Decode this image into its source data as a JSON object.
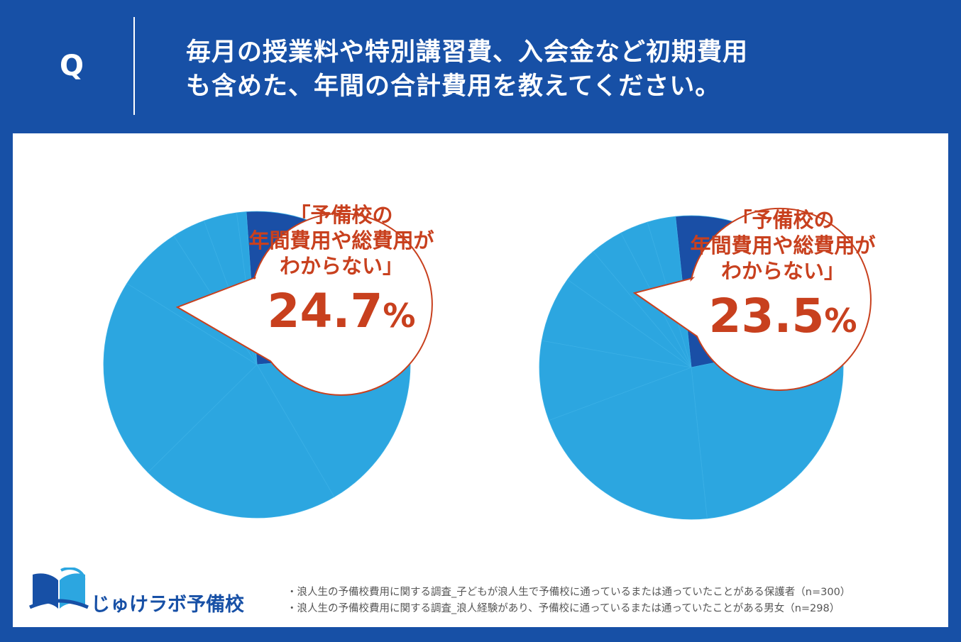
{
  "header": {
    "q_mark": "Q",
    "question_line1": "毎月の授業料や特別講習費、入会金など初期費用",
    "question_line2": "も含めた、年間の合計費用を教えてください。"
  },
  "chart_data": [
    {
      "type": "pie",
      "slices": [
        {
          "value": 24.7,
          "color": "#1a4fa6"
        },
        {
          "value": 18.0,
          "color": "#2ca6e0"
        },
        {
          "value": 21.0,
          "color": "#2ca6e0"
        },
        {
          "value": 21.3,
          "color": "#2ca6e0"
        },
        {
          "value": 7.0,
          "color": "#2ca6e0"
        },
        {
          "value": 3.5,
          "color": "#2ca6e0"
        },
        {
          "value": 3.5,
          "color": "#2ca6e0"
        },
        {
          "value": 1.0,
          "color": "#2ca6e0"
        }
      ],
      "highlight": {
        "label_line1": "「予備校の",
        "label_line2": "年間費用や総費用が",
        "label_line3": "わからない」",
        "value_int": "24.",
        "value_dec": "7",
        "value_unit": "%"
      }
    },
    {
      "type": "pie",
      "slices": [
        {
          "value": 23.5,
          "color": "#1a4fa6"
        },
        {
          "value": 26.5,
          "color": "#2ca6e0"
        },
        {
          "value": 21.0,
          "color": "#2ca6e0"
        },
        {
          "value": 8.5,
          "color": "#2ca6e0"
        },
        {
          "value": 7.0,
          "color": "#2ca6e0"
        },
        {
          "value": 4.0,
          "color": "#2ca6e0"
        },
        {
          "value": 3.5,
          "color": "#2ca6e0"
        },
        {
          "value": 3.0,
          "color": "#2ca6e0"
        },
        {
          "value": 3.0,
          "color": "#2ca6e0"
        }
      ],
      "highlight": {
        "label_line1": "「予備校の",
        "label_line2": "年間費用や総費用が",
        "label_line3": "わからない」",
        "value_int": "23.",
        "value_dec": "5",
        "value_unit": "%"
      }
    }
  ],
  "logo": {
    "text": "じゅけラボ予備校",
    "icon": "open-book-icon",
    "color": "#1750a6"
  },
  "notes": {
    "line1": "・浪人生の予備校費用に関する調査_子どもが浪人生で予備校に通っているまたは通っていたことがある保護者（n=300）",
    "line2": "・浪人生の予備校費用に関する調査_浪人経験があり、予備校に通っているまたは通っていたことがある男女（n=298）"
  },
  "colors": {
    "background": "#1750a6",
    "accent_text": "#c8401e",
    "pie_dark": "#1a4fa6",
    "pie_light": "#2ca6e0"
  }
}
